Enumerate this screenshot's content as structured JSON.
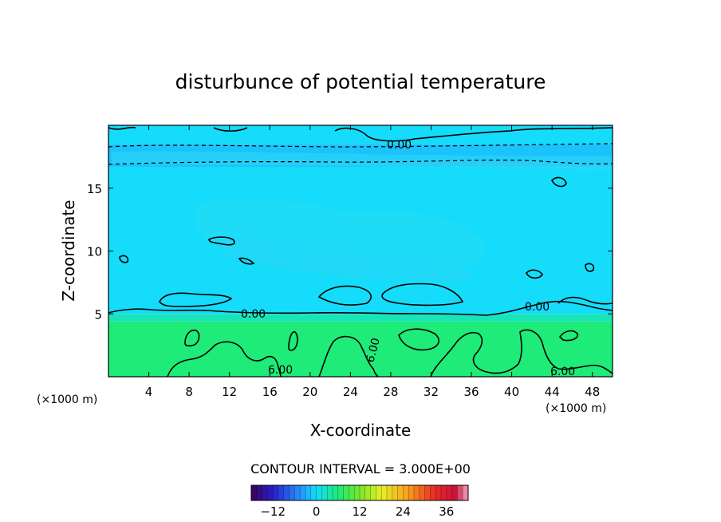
{
  "chart_data": {
    "type": "heatmap",
    "title": "disturbunce of potential temperature",
    "xlabel": "X-coordinate",
    "ylabel": "Z-coordinate",
    "x_unit": "(×1000 m)",
    "xlim": [
      0,
      50
    ],
    "ylim": [
      0,
      20
    ],
    "x_ticks": [
      4,
      8,
      12,
      16,
      20,
      24,
      28,
      32,
      36,
      40,
      44,
      48
    ],
    "y_ticks": [
      5,
      10,
      15
    ],
    "contour_labels": [
      "0.00",
      "0.00",
      "0.00",
      "6.00",
      "6.00",
      "6.00"
    ],
    "contour_interval_text": "CONTOUR INTERVAL = 3.000E+00",
    "colorbar": {
      "range": [
        -18,
        42
      ],
      "tick_labels": [
        "−12",
        "0",
        "12",
        "24",
        "36"
      ],
      "tick_values": [
        -12,
        0,
        12,
        24,
        36
      ]
    },
    "field_bands": [
      {
        "z_from": 0,
        "z_to": 4.4,
        "value": 6
      },
      {
        "z_from": 4.4,
        "z_to": 5.0,
        "value": 3
      },
      {
        "z_from": 5.0,
        "z_to": 16.7,
        "value": 0
      },
      {
        "z_from": 16.7,
        "z_to": 18.5,
        "value": -1.5
      },
      {
        "z_from": 18.5,
        "z_to": 20,
        "value": 0
      }
    ]
  }
}
